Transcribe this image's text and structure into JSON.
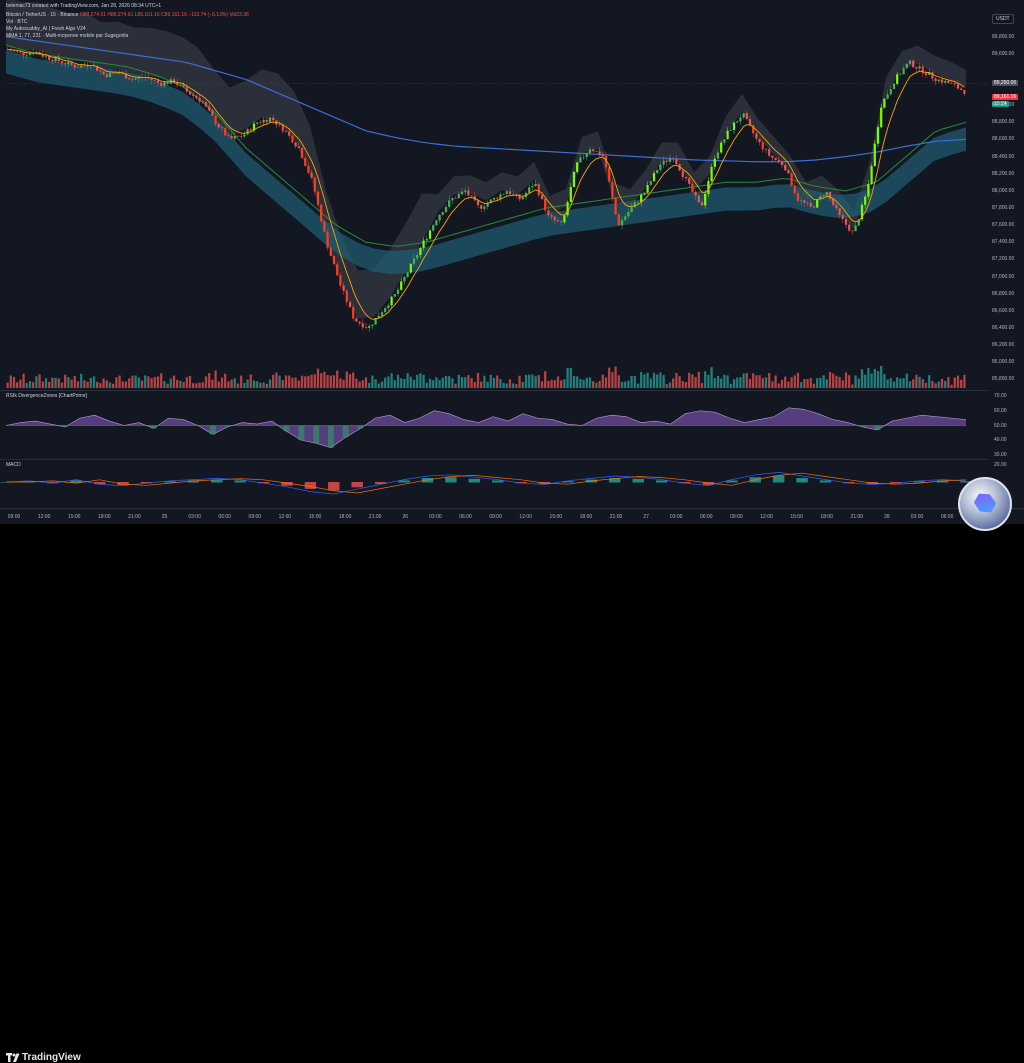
{
  "header": {
    "author_line": "belemac73 created with TradingView.com, Jan 28, 2026 08:34 UTC+1",
    "symbol_line_parts": [
      "Bitcoin / TetherUS · 15 · Binance",
      "O89,274.91",
      "H89,274.91",
      "L89,161.16",
      "C89,161.16",
      "−113.74 (−0.13%)",
      "Vol23.36"
    ],
    "vol_line": "Vol · BTC",
    "indicator_1": "My Autoscabby_AI | Fresh Algo V24",
    "indicator_2": "MMA 1, 77, 231 · Multi-moyenne mobile par Sugegorila"
  },
  "currency_badge": "USDT",
  "price_axis_labels": [
    "89,800.00",
    "89,600.00",
    "89,250.00",
    "89,161.16",
    "10:24",
    "89,000.00",
    "88,800.00",
    "88,600.00",
    "88,400.00",
    "88,200.00",
    "88,000.00",
    "87,800.00",
    "87,600.00",
    "87,400.00",
    "87,200.00",
    "87,000.00",
    "86,800.00",
    "86,600.00",
    "86,400.00",
    "86,200.00",
    "86,000.00",
    "85,800.00"
  ],
  "time_axis_labels": [
    "09:00",
    "12:00",
    "15:00",
    "18:00",
    "21:00",
    "25",
    "03:00",
    "06:00",
    "09:00",
    "12:00",
    "15:00",
    "18:00",
    "21:00",
    "26",
    "03:00",
    "06:00",
    "09:00",
    "12:00",
    "15:00",
    "18:00",
    "21:00",
    "27",
    "03:00",
    "06:00",
    "09:00",
    "12:00",
    "15:00",
    "18:00",
    "21:00",
    "28",
    "03:00",
    "06:00"
  ],
  "rsi_pane": {
    "title": "RSIk DivergenceZones [ChartPrime]",
    "axis_labels": [
      "70.00",
      "60.00",
      "50.00",
      "40.00",
      "30.00"
    ]
  },
  "macd_pane": {
    "title": "MACD",
    "axis_labels": [
      "20.00"
    ]
  },
  "footer": {
    "brand": "TradingView"
  },
  "colors": {
    "background": "#131722",
    "bull": "#4caf50",
    "bear": "#ef5350",
    "bull_bright": "#7cfc00",
    "bear_bright": "#ff3b1f",
    "mma_blue": "#3b6fd4",
    "mma_green": "#1e8e3e",
    "mma_orange": "#f7a600",
    "cloud_teal": "#1f5f73",
    "cloud_gray": "#4a4d57",
    "rsi_purple": "#8e5cc6",
    "rsi_green": "#2e9e64"
  },
  "chart_data": {
    "type": "candlestick",
    "symbol": "Bitcoin / TetherUS",
    "timeframe": "15",
    "exchange": "Binance",
    "ylim": [
      85700,
      89900
    ],
    "x": [
      "09:00",
      "12:00",
      "15:00",
      "18:00",
      "21:00",
      "25",
      "03:00",
      "06:00",
      "09:00",
      "12:00",
      "15:00",
      "18:00",
      "21:00",
      "26",
      "03:00",
      "06:00",
      "09:00",
      "12:00",
      "15:00",
      "18:00",
      "21:00",
      "27",
      "03:00",
      "06:00",
      "09:00",
      "12:00",
      "15:00",
      "18:00",
      "21:00",
      "28",
      "03:00",
      "06:00"
    ],
    "close_path": [
      89650,
      89600,
      89620,
      89550,
      89500,
      89450,
      89480,
      89350,
      89380,
      89300,
      89330,
      89250,
      89280,
      89150,
      89050,
      88800,
      88600,
      88650,
      88800,
      88850,
      88700,
      88500,
      88100,
      87400,
      86900,
      86500,
      86400,
      86600,
      86800,
      87100,
      87400,
      87700,
      87900,
      88000,
      87800,
      87900,
      88000,
      87900,
      88100,
      87700,
      87600,
      88300,
      88500,
      88400,
      87600,
      87800,
      88000,
      88300,
      88400,
      88100,
      87800,
      88400,
      88700,
      88900,
      88600,
      88400,
      88300,
      87900,
      87800,
      88000,
      87700,
      87500,
      88000,
      89000,
      89300,
      89500,
      89400,
      89300,
      89250,
      89161.16
    ],
    "last_price": 89161.16,
    "last_price_label": "89,161.16",
    "marked_price": 89250.0,
    "ma_blue_path": [
      89800,
      89750,
      89700,
      89650,
      89600,
      89550,
      89500,
      89400,
      89300,
      89150,
      89000,
      88850,
      88700,
      88620,
      88560,
      88520,
      88500,
      88480,
      88460,
      88440,
      88420,
      88400,
      88380,
      88360,
      88350,
      88340,
      88340,
      88360,
      88400,
      88450,
      88520,
      88580,
      88600
    ],
    "ma_green_path": [
      89700,
      89600,
      89550,
      89500,
      89450,
      89350,
      89200,
      88900,
      88500,
      88200,
      87900,
      87600,
      87400,
      87350,
      87400,
      87500,
      87600,
      87700,
      87800,
      87850,
      87900,
      87950,
      88000,
      88050,
      88100,
      88100,
      88150,
      88050,
      88000,
      88100,
      88400,
      88700,
      88800
    ],
    "rsi": {
      "ylim": [
        30,
        70
      ],
      "values": [
        50,
        52,
        53,
        51,
        49,
        55,
        57,
        53,
        50,
        52,
        48,
        55,
        54,
        50,
        44,
        49,
        52,
        51,
        53,
        46,
        40,
        38,
        35,
        42,
        48,
        55,
        57,
        52,
        55,
        60,
        58,
        54,
        52,
        56,
        53,
        58,
        55,
        54,
        51,
        50,
        55,
        57,
        56,
        52,
        53,
        51,
        58,
        60,
        59,
        55,
        52,
        54,
        56,
        62,
        61,
        58,
        54,
        52,
        49,
        47,
        53,
        55,
        57,
        56,
        55,
        54
      ]
    },
    "macd": {
      "values": [
        0,
        1,
        -1,
        2,
        -2,
        -3,
        -1,
        1,
        2,
        3,
        2,
        -1,
        -4,
        -8,
        -10,
        -6,
        -2,
        2,
        5,
        6,
        4,
        2,
        -1,
        -2,
        1,
        3,
        5,
        4,
        2,
        -1,
        -3,
        2,
        6,
        8,
        5,
        2,
        -1,
        -2,
        -1,
        1,
        2,
        1
      ]
    }
  }
}
